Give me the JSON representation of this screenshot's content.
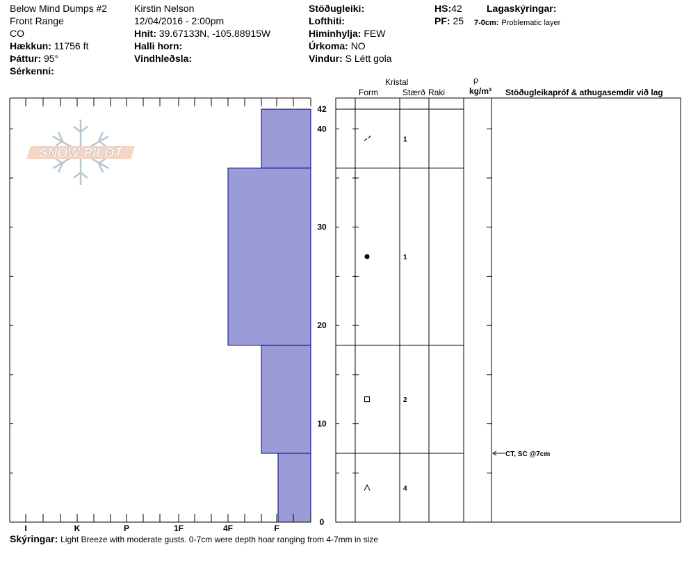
{
  "header": {
    "site_name": "Below Mind Dumps #2",
    "range": "Front Range",
    "state": "CO",
    "elevation_label": "Hækkun:",
    "elevation_value": "11756 ft",
    "aspect_label": "Þáttur:",
    "aspect_value": "95°",
    "features_label": "Sérkenni:",
    "observer": "Kirstin Nelson",
    "datetime": "12/04/2016 - 2:00pm",
    "coords_label": "Hnit:",
    "coords_value": "39.67133N, -105.88915W",
    "slope_label": "Halli horn:",
    "wind_loading_label": "Vindhleðsla:",
    "stability_label": "Stöðugleiki:",
    "air_temp_label": "Lofthiti:",
    "sky_label": "Himinhylja:",
    "sky_value": "FEW",
    "precip_label": "Úrkoma:",
    "precip_value": "NO",
    "wind_label": "Vindur:",
    "wind_value": "S Létt gola",
    "hs_label": "HS:",
    "hs_value": "42",
    "pf_label": "PF:",
    "pf_value": "25",
    "layer_notes_label": "Lagaskýringar:",
    "layer_note_range": "7-0cm:",
    "layer_note_text": "Problematic layer"
  },
  "logo": {
    "text": "SNOW PILOT"
  },
  "table_headers": {
    "crystal": "Kristal",
    "form": "Form",
    "size": "Stærð",
    "moisture": "Raki",
    "density_symbol": "ρ",
    "density_unit": "kg/m³",
    "tests": "Stöðugleikapróf & athugasemdir við lag"
  },
  "test_annotation": {
    "text": "CT, SC @7cm",
    "depth_cm": 7
  },
  "comments": {
    "label": "Skýringar:",
    "text": "Light Breeze with moderate gusts.  0-7cm were depth hoar ranging from 4-7mm in size"
  },
  "colors": {
    "layer_fill": "#9b9bd7",
    "layer_stroke": "#00008b"
  },
  "chart_data": {
    "type": "bar",
    "title": "",
    "xlabel": "",
    "ylabel": "",
    "hardness_ticks": [
      "I",
      "K",
      "P",
      "1F",
      "4F",
      "F"
    ],
    "depth_ticks": [
      0,
      10,
      20,
      30,
      40,
      42
    ],
    "ylim": [
      0,
      42
    ],
    "total_depth_cm": 42,
    "layers": [
      {
        "top": 42,
        "bottom": 36,
        "hardness": "F+",
        "form": "decomposing",
        "size": "1"
      },
      {
        "top": 36,
        "bottom": 18,
        "hardness": "4F",
        "form": "rounded",
        "size": "1"
      },
      {
        "top": 18,
        "bottom": 7,
        "hardness": "F+",
        "form": "faceted",
        "size": "2"
      },
      {
        "top": 7,
        "bottom": 0,
        "hardness": "F-",
        "form": "depth-hoar",
        "size": "4"
      }
    ]
  }
}
